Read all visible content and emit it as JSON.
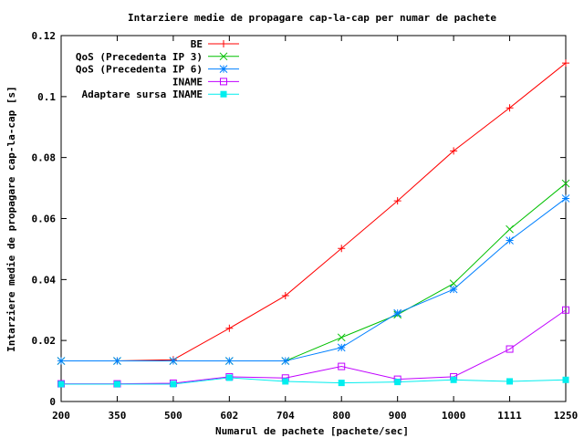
{
  "chart_data": {
    "type": "line",
    "title": "Intarziere medie de propagare cap-la-cap per numar de pachete",
    "xlabel": "Numarul de pachete [pachete/sec]",
    "ylabel": "Intarziere medie de propagare cap-la-cap [s]",
    "categories": [
      "200",
      "350",
      "500",
      "602",
      "704",
      "800",
      "900",
      "1000",
      "1111",
      "1250"
    ],
    "ylim": [
      0,
      0.12
    ],
    "yticks": [
      "0",
      "0.02",
      "0.04",
      "0.06",
      "0.08",
      "0.1",
      "0.12"
    ],
    "grid": false,
    "legend_position": "top-left",
    "series": [
      {
        "name": "BE",
        "color": "#ff0000",
        "marker": "plus",
        "values": [
          0.0133,
          0.0133,
          0.0137,
          0.024,
          0.0347,
          0.0502,
          0.0658,
          0.0822,
          0.0963,
          0.111
        ]
      },
      {
        "name": "QoS (Precedenta IP 3)",
        "color": "#00c000",
        "marker": "cross",
        "values": [
          0.0133,
          0.0133,
          0.0133,
          0.0133,
          0.0133,
          0.021,
          0.0285,
          0.0387,
          0.0565,
          0.0715
        ]
      },
      {
        "name": "QoS (Precedenta IP 6)",
        "color": "#0080ff",
        "marker": "star",
        "values": [
          0.0133,
          0.0133,
          0.0133,
          0.0133,
          0.0133,
          0.0177,
          0.029,
          0.0368,
          0.0528,
          0.0666
        ]
      },
      {
        "name": "INAME",
        "color": "#c000ff",
        "marker": "square",
        "values": [
          0.0058,
          0.0058,
          0.006,
          0.0081,
          0.0077,
          0.0115,
          0.0073,
          0.0081,
          0.0172,
          0.03
        ]
      },
      {
        "name": "Adaptare sursa INAME",
        "color": "#00eeee",
        "marker": "filled-square",
        "values": [
          0.0057,
          0.0057,
          0.0057,
          0.0078,
          0.0066,
          0.0061,
          0.0064,
          0.0071,
          0.0066,
          0.0071
        ]
      }
    ]
  }
}
